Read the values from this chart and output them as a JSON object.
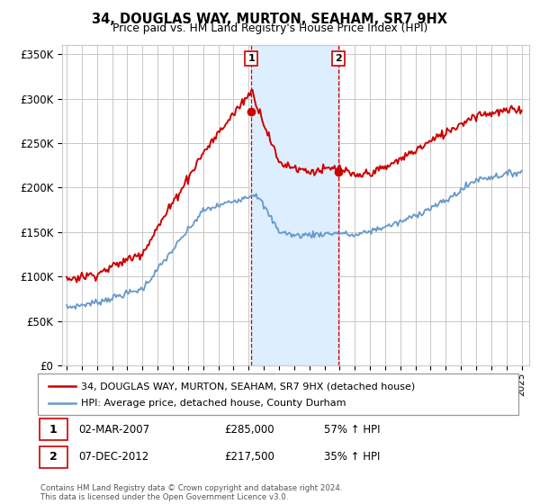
{
  "title": "34, DOUGLAS WAY, MURTON, SEAHAM, SR7 9HX",
  "subtitle": "Price paid vs. HM Land Registry's House Price Index (HPI)",
  "legend_line1": "34, DOUGLAS WAY, MURTON, SEAHAM, SR7 9HX (detached house)",
  "legend_line2": "HPI: Average price, detached house, County Durham",
  "annotation1_label": "1",
  "annotation1_date": "02-MAR-2007",
  "annotation1_price": "£285,000",
  "annotation1_hpi": "57% ↑ HPI",
  "annotation2_label": "2",
  "annotation2_date": "07-DEC-2012",
  "annotation2_price": "£217,500",
  "annotation2_hpi": "35% ↑ HPI",
  "footer": "Contains HM Land Registry data © Crown copyright and database right 2024.\nThis data is licensed under the Open Government Licence v3.0.",
  "red_color": "#cc0000",
  "blue_color": "#6699cc",
  "shading_color": "#ddeeff",
  "background_color": "#ffffff",
  "grid_color": "#c8c8c8",
  "ylim": [
    0,
    360000
  ],
  "yticks": [
    0,
    50000,
    100000,
    150000,
    200000,
    250000,
    300000,
    350000
  ],
  "ytick_labels": [
    "£0",
    "£50K",
    "£100K",
    "£150K",
    "£200K",
    "£250K",
    "£300K",
    "£350K"
  ],
  "sale1_x": 2007.17,
  "sale1_y": 285000,
  "sale2_x": 2012.93,
  "sale2_y": 217500,
  "shade_x1": 2007.17,
  "shade_x2": 2012.93,
  "xlim_left": 1994.7,
  "xlim_right": 2025.5
}
